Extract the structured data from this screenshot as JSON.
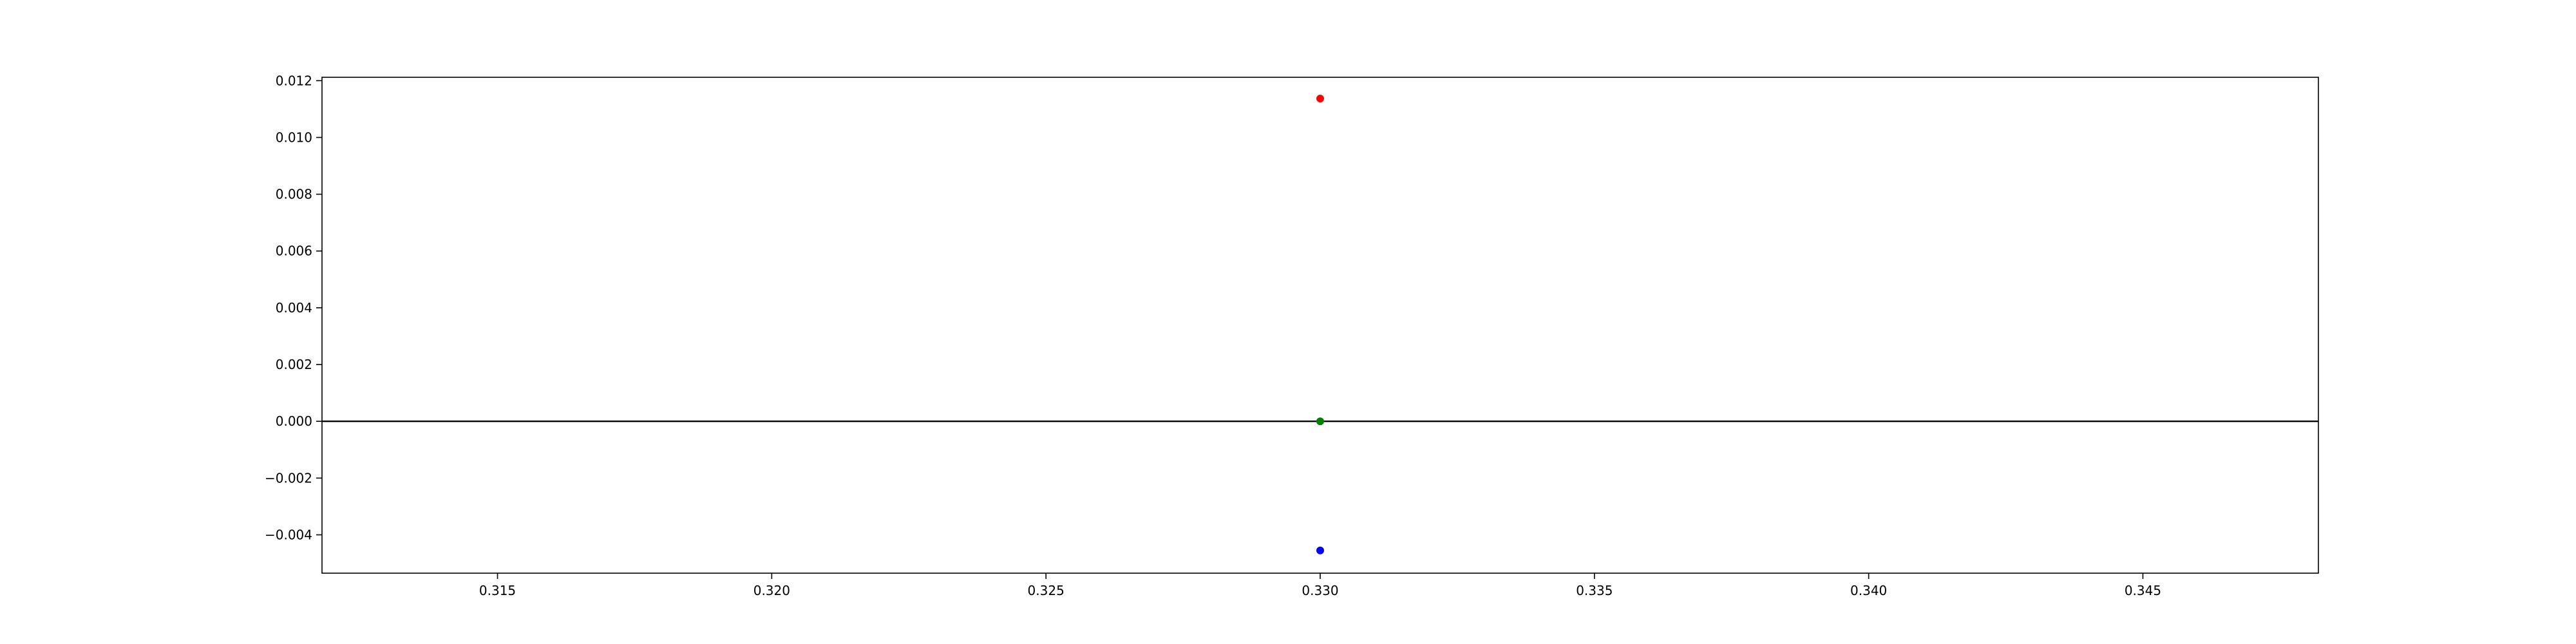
{
  "chart_data": {
    "type": "scatter",
    "title": "",
    "xlabel": "",
    "ylabel": "",
    "xlim": [
      0.3118,
      0.3482
    ],
    "ylim": [
      -0.00535,
      0.01212
    ],
    "xticks": [
      0.315,
      0.32,
      0.325,
      0.33,
      0.335,
      0.34,
      0.345
    ],
    "xtick_labels": [
      "0.315",
      "0.320",
      "0.325",
      "0.330",
      "0.335",
      "0.340",
      "0.345"
    ],
    "yticks": [
      -0.004,
      -0.002,
      0.0,
      0.002,
      0.004,
      0.006,
      0.008,
      0.01,
      0.012
    ],
    "ytick_labels": [
      "−0.004",
      "−0.002",
      "0.000",
      "0.002",
      "0.004",
      "0.006",
      "0.008",
      "0.010",
      "0.012"
    ],
    "grid": false,
    "legend": "none",
    "hline_y": 0,
    "hline_color": "#000000",
    "points": [
      {
        "x": 0.33,
        "y": 0.01137,
        "color": "#ff0000"
      },
      {
        "x": 0.33,
        "y": 0.0,
        "color": "#008000"
      },
      {
        "x": 0.33,
        "y": -0.00455,
        "color": "#0000ff"
      }
    ]
  }
}
